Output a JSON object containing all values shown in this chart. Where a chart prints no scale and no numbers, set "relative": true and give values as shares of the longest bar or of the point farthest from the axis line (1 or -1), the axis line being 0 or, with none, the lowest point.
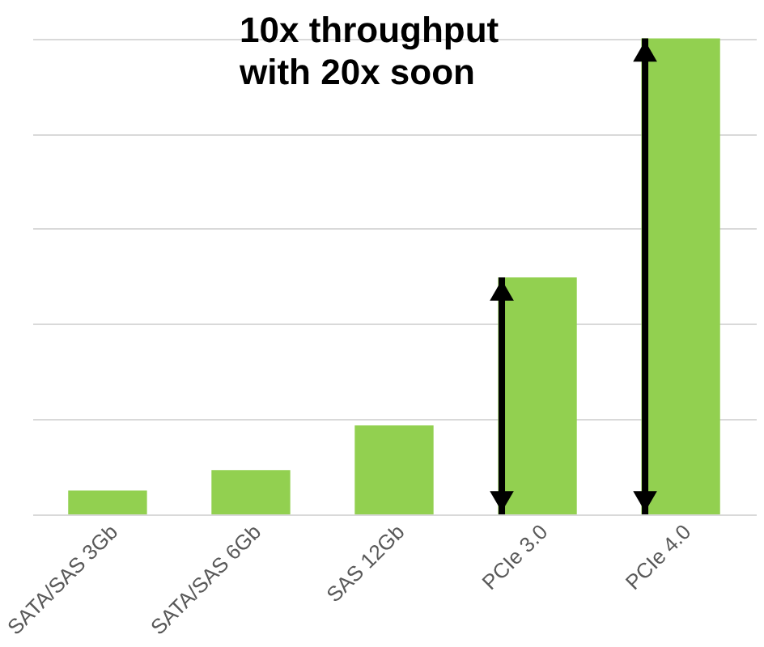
{
  "chart_data": {
    "type": "bar",
    "relative": true,
    "categories": [
      "SATA/SAS 3Gb",
      "SATA/SAS 6Gb",
      "SAS 12Gb",
      "PCIe 3.0",
      "PCIe 4.0"
    ],
    "values": [
      0.05,
      0.093,
      0.187,
      0.498,
      1
    ],
    "color": "#92d050",
    "grid": "y",
    "annotations": [
      "10x throughput\nwith 20x soon"
    ]
  }
}
